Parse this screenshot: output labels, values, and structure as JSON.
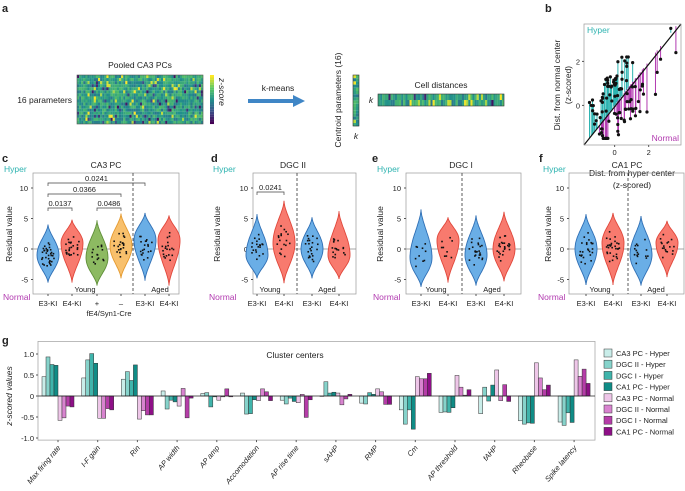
{
  "panel_letters": {
    "a": "a",
    "b": "b",
    "c": "c",
    "d": "d",
    "e": "e",
    "f": "f",
    "g": "g"
  },
  "panel_a": {
    "title": "Pooled CA3 PCs",
    "rows_label": "16 parameters",
    "colorbar_label": "z-score",
    "arrow_label": "k-means",
    "centroid_label": "Centroid parameters (16)",
    "k_label": "k",
    "distances_label": "Cell distances",
    "arrow_color": "#3f86c6"
  },
  "colors": {
    "hyper": "#2db3b0",
    "normal": "#b23ab0",
    "E3-KI": "#6aaee6",
    "E4-KI": "#f87a6e",
    "fE4_plus": "#8dba62",
    "fE4_minus": "#f8c06c"
  },
  "chart_data": [
    {
      "id": "b",
      "type": "scatter",
      "xlabel": [
        "Dist. from hyper center",
        "(z-scored)"
      ],
      "ylabel": [
        "Dist. from normal center",
        "(z-scored)"
      ],
      "xticks": [
        "0",
        "2"
      ],
      "yticks": [
        "0",
        "2"
      ],
      "xlim": [
        -1.8,
        3.9
      ],
      "ylim": [
        -1.8,
        3.7
      ],
      "annotations": {
        "hyper": "Hyper",
        "normal": "Normal"
      },
      "reference_line": "y = x"
    },
    {
      "id": "c",
      "type": "violin",
      "title": "CA3 PC",
      "ylabel": "Residual value",
      "yticks": [
        "10",
        "5",
        "0",
        "-5"
      ],
      "ylim": [
        -8.0,
        12.0
      ],
      "top_label": "Hyper",
      "bottom_label": "Normal",
      "groups": [
        "Young",
        "Aged"
      ],
      "xsub_label": "fE4/Syn1-Cre",
      "categories": [
        "E3-KI",
        "E4-KI",
        "+",
        "–",
        "E3-KI",
        "E4-KI"
      ],
      "colors": [
        "#6aaee6",
        "#f87a6e",
        "#8dba62",
        "#f8c06c",
        "#6aaee6",
        "#f87a6e"
      ],
      "violins": [
        {
          "min": -5.5,
          "max": 4.0,
          "peak": -1.0,
          "n": 35
        },
        {
          "min": -5.5,
          "max": 4.8,
          "peak": 1.0,
          "n": 25
        },
        {
          "min": -6.0,
          "max": 4.7,
          "peak": -1.5,
          "n": 15
        },
        {
          "min": -4.8,
          "max": 5.8,
          "peak": 0.5,
          "n": 22
        },
        {
          "min": -5.2,
          "max": 5.9,
          "peak": 1.5,
          "n": 20
        },
        {
          "min": -6.0,
          "max": 5.5,
          "peak": 1.5,
          "n": 20
        }
      ],
      "comparisons": [
        {
          "from": 0,
          "to": 4,
          "p": "0.0241"
        },
        {
          "from": 0,
          "to": 3,
          "p": "0.0366"
        },
        {
          "from": 0,
          "to": 1,
          "p": "0.0137"
        },
        {
          "from": 2,
          "to": 3,
          "p": "0.0486"
        }
      ]
    },
    {
      "id": "d",
      "type": "violin",
      "title": "DGC II",
      "ylabel": "Residual value",
      "yticks": [
        "10",
        "5",
        "0",
        "-5"
      ],
      "ylim": [
        -8.0,
        12.0
      ],
      "top_label": "Hyper",
      "bottom_label": "Normal",
      "groups": [
        "Young",
        "Aged"
      ],
      "categories": [
        "E3-KI",
        "E4-KI",
        "E3-KI",
        "E4-KI"
      ],
      "colors": [
        "#6aaee6",
        "#f87a6e",
        "#6aaee6",
        "#f87a6e"
      ],
      "violins": [
        {
          "min": -4.8,
          "max": 5.7,
          "peak": -1.0,
          "n": 20
        },
        {
          "min": -5.6,
          "max": 7.9,
          "peak": 1.0,
          "n": 18
        },
        {
          "min": -4.8,
          "max": 5.2,
          "peak": 0.0,
          "n": 22
        },
        {
          "min": -4.9,
          "max": 6.2,
          "peak": -1.0,
          "n": 18
        }
      ],
      "comparisons": [
        {
          "from": 0,
          "to": 1,
          "p": "0.0241"
        }
      ]
    },
    {
      "id": "e",
      "type": "violin",
      "title": "DGC I",
      "ylabel": "Residual value",
      "yticks": [
        "10",
        "5",
        "0",
        "-5"
      ],
      "ylim": [
        -8.0,
        12.0
      ],
      "top_label": "Hyper",
      "bottom_label": "Normal",
      "groups": [
        "Young",
        "Aged"
      ],
      "categories": [
        "E3-KI",
        "E4-KI",
        "E3-KI",
        "E4-KI"
      ],
      "colors": [
        "#6aaee6",
        "#f87a6e",
        "#6aaee6",
        "#f87a6e"
      ],
      "violins": [
        {
          "min": -6.2,
          "max": 6.5,
          "peak": -1.5,
          "n": 10
        },
        {
          "min": -5.5,
          "max": 5.2,
          "peak": 1.5,
          "n": 9
        },
        {
          "min": -6.0,
          "max": 5.5,
          "peak": -1.0,
          "n": 24
        },
        {
          "min": -5.3,
          "max": 6.1,
          "peak": 0.0,
          "n": 24
        }
      ],
      "comparisons": []
    },
    {
      "id": "f",
      "type": "violin",
      "title": "CA1 PC",
      "ylabel": "Residual value",
      "yticks": [
        "10",
        "5",
        "0",
        "-5"
      ],
      "ylim": [
        -8.0,
        12.0
      ],
      "top_label": "Hyper",
      "bottom_label": "Normal",
      "groups": [
        "Young",
        "Aged"
      ],
      "categories": [
        "E3-KI",
        "E4-KI",
        "E3-KI",
        "E4-KI"
      ],
      "colors": [
        "#6aaee6",
        "#f87a6e",
        "#6aaee6",
        "#f87a6e"
      ],
      "violins": [
        {
          "min": -5.9,
          "max": 5.7,
          "peak": 0.0,
          "n": 24
        },
        {
          "min": -5.9,
          "max": 5.9,
          "peak": 1.0,
          "n": 30
        },
        {
          "min": -6.0,
          "max": 5.4,
          "peak": -1.0,
          "n": 16
        },
        {
          "min": -4.6,
          "max": 4.6,
          "peak": 1.0,
          "n": 18
        }
      ],
      "comparisons": []
    },
    {
      "id": "g",
      "type": "bar",
      "title": "Cluster centers",
      "ylabel": "z-scored values",
      "yticks": [
        "1.0",
        "0.5",
        "0",
        "-0.5",
        "-1.0"
      ],
      "ylim": [
        -1.05,
        1.3
      ],
      "legend_position": "right",
      "categories": [
        "Max firing rate",
        "I-F gain",
        "Rin",
        "AP width",
        "AP amp",
        "Accomodation",
        "AP rise time",
        "sAHP",
        "RMP",
        "Cm",
        "AP threshold",
        "fAHP",
        "Rheobase",
        "Spike latency"
      ],
      "series": [
        {
          "name": "CA3 PC - Hyper",
          "color": "#c9ede9",
          "values": [
            0.46,
            0.43,
            0.4,
            0.12,
            0.06,
            0.07,
            -0.1,
            -0.01,
            -0.17,
            -0.33,
            -0.39,
            -0.42,
            -0.59,
            -0.62
          ]
        },
        {
          "name": "DGC II - Hyper",
          "color": "#86d3cb",
          "values": [
            0.93,
            0.86,
            0.58,
            -0.31,
            0.08,
            -0.43,
            -0.19,
            0.34,
            -0.19,
            -0.67,
            -0.38,
            0.21,
            -0.67,
            -0.7
          ]
        },
        {
          "name": "DGC I - Hyper",
          "color": "#3fb4ab",
          "values": [
            0.75,
            1.01,
            0.37,
            -0.1,
            -0.26,
            -0.42,
            -0.05,
            0.07,
            0.08,
            -0.33,
            -0.39,
            -0.12,
            -0.64,
            -0.4
          ]
        },
        {
          "name": "CA1 PC - Hyper",
          "color": "#0f8c86",
          "values": [
            0.73,
            0.78,
            0.74,
            -0.14,
            -0.02,
            -0.09,
            -0.13,
            0.09,
            0.04,
            -0.79,
            -0.28,
            0.26,
            -0.65,
            -0.63
          ]
        },
        {
          "name": "CA3 PC - Normal",
          "color": "#eec6e8",
          "values": [
            -0.58,
            -0.53,
            -0.55,
            -0.24,
            -0.1,
            -0.11,
            -0.16,
            0.07,
            0.17,
            0.46,
            0.49,
            0.62,
            0.79,
            0.86
          ]
        },
        {
          "name": "DGC II - Normal",
          "color": "#d883cf",
          "values": [
            -0.52,
            -0.53,
            -0.35,
            0.18,
            -0.02,
            0.17,
            0.04,
            -0.21,
            0.1,
            0.41,
            0.21,
            -0.11,
            0.43,
            0.47
          ]
        },
        {
          "name": "DGC I - Normal",
          "color": "#b53ca8",
          "values": [
            -0.24,
            -0.3,
            -0.45,
            -0.52,
            0.17,
            0.1,
            -0.51,
            -0.07,
            -0.2,
            0.41,
            0.02,
            0.27,
            0.15,
            0.64
          ]
        },
        {
          "name": "CA1 PC - Normal",
          "color": "#8e0f87",
          "values": [
            -0.26,
            -0.33,
            -0.45,
            -0.05,
            -0.02,
            -0.11,
            -0.09,
            0.04,
            -0.2,
            0.54,
            0.15,
            -0.13,
            0.26,
            0.3
          ]
        }
      ]
    }
  ]
}
